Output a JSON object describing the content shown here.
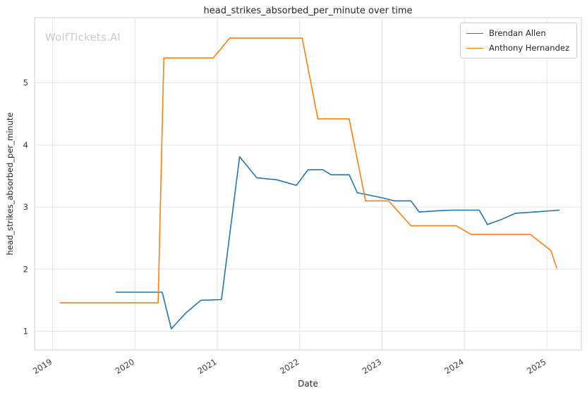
{
  "watermark": "WolfTickets.AI",
  "chart_data": {
    "type": "line",
    "title": "head_strikes_absorbed_per_minute over time",
    "xlabel": "Date",
    "ylabel": "head_strikes_absorbed_per_minute",
    "xlim": [
      2018.78,
      2025.42
    ],
    "ylim": [
      0.7,
      6.05
    ],
    "x_ticks": [
      2019,
      2020,
      2021,
      2022,
      2023,
      2024,
      2025
    ],
    "y_ticks": [
      1,
      2,
      3,
      4,
      5
    ],
    "grid": true,
    "legend_position": "top-right",
    "colors": {
      "grid": "#e3e3e3",
      "spine": "#cfcfcf",
      "tick_label": "#3b3b3b",
      "series_blue": "#1f77b4",
      "series_orange": "#ff7f0e"
    },
    "series": [
      {
        "name": "Brendan Allen",
        "color": "#1f77b4",
        "x": [
          2019.77,
          2020.33,
          2020.44,
          2020.62,
          2020.8,
          2021.05,
          2021.27,
          2021.48,
          2021.72,
          2021.96,
          2022.1,
          2022.28,
          2022.38,
          2022.6,
          2022.7,
          2023.0,
          2023.15,
          2023.35,
          2023.45,
          2023.67,
          2023.85,
          2024.18,
          2024.28,
          2024.45,
          2024.62,
          2024.85,
          2025.15
        ],
        "y": [
          1.63,
          1.63,
          1.04,
          1.3,
          1.5,
          1.51,
          3.81,
          3.47,
          3.44,
          3.35,
          3.6,
          3.6,
          3.52,
          3.52,
          3.23,
          3.15,
          3.1,
          3.1,
          2.92,
          2.94,
          2.95,
          2.95,
          2.72,
          2.8,
          2.9,
          2.92,
          2.95
        ]
      },
      {
        "name": "Anthony Hernandez",
        "color": "#ff7f0e",
        "x": [
          2019.09,
          2020.28,
          2020.35,
          2020.95,
          2021.15,
          2022.03,
          2022.22,
          2022.6,
          2022.8,
          2023.08,
          2023.35,
          2023.9,
          2024.08,
          2024.8,
          2025.05,
          2025.12
        ],
        "y": [
          1.46,
          1.46,
          5.4,
          5.4,
          5.72,
          5.72,
          4.42,
          4.42,
          3.1,
          3.1,
          2.7,
          2.7,
          2.56,
          2.56,
          2.3,
          2.02
        ]
      }
    ]
  }
}
